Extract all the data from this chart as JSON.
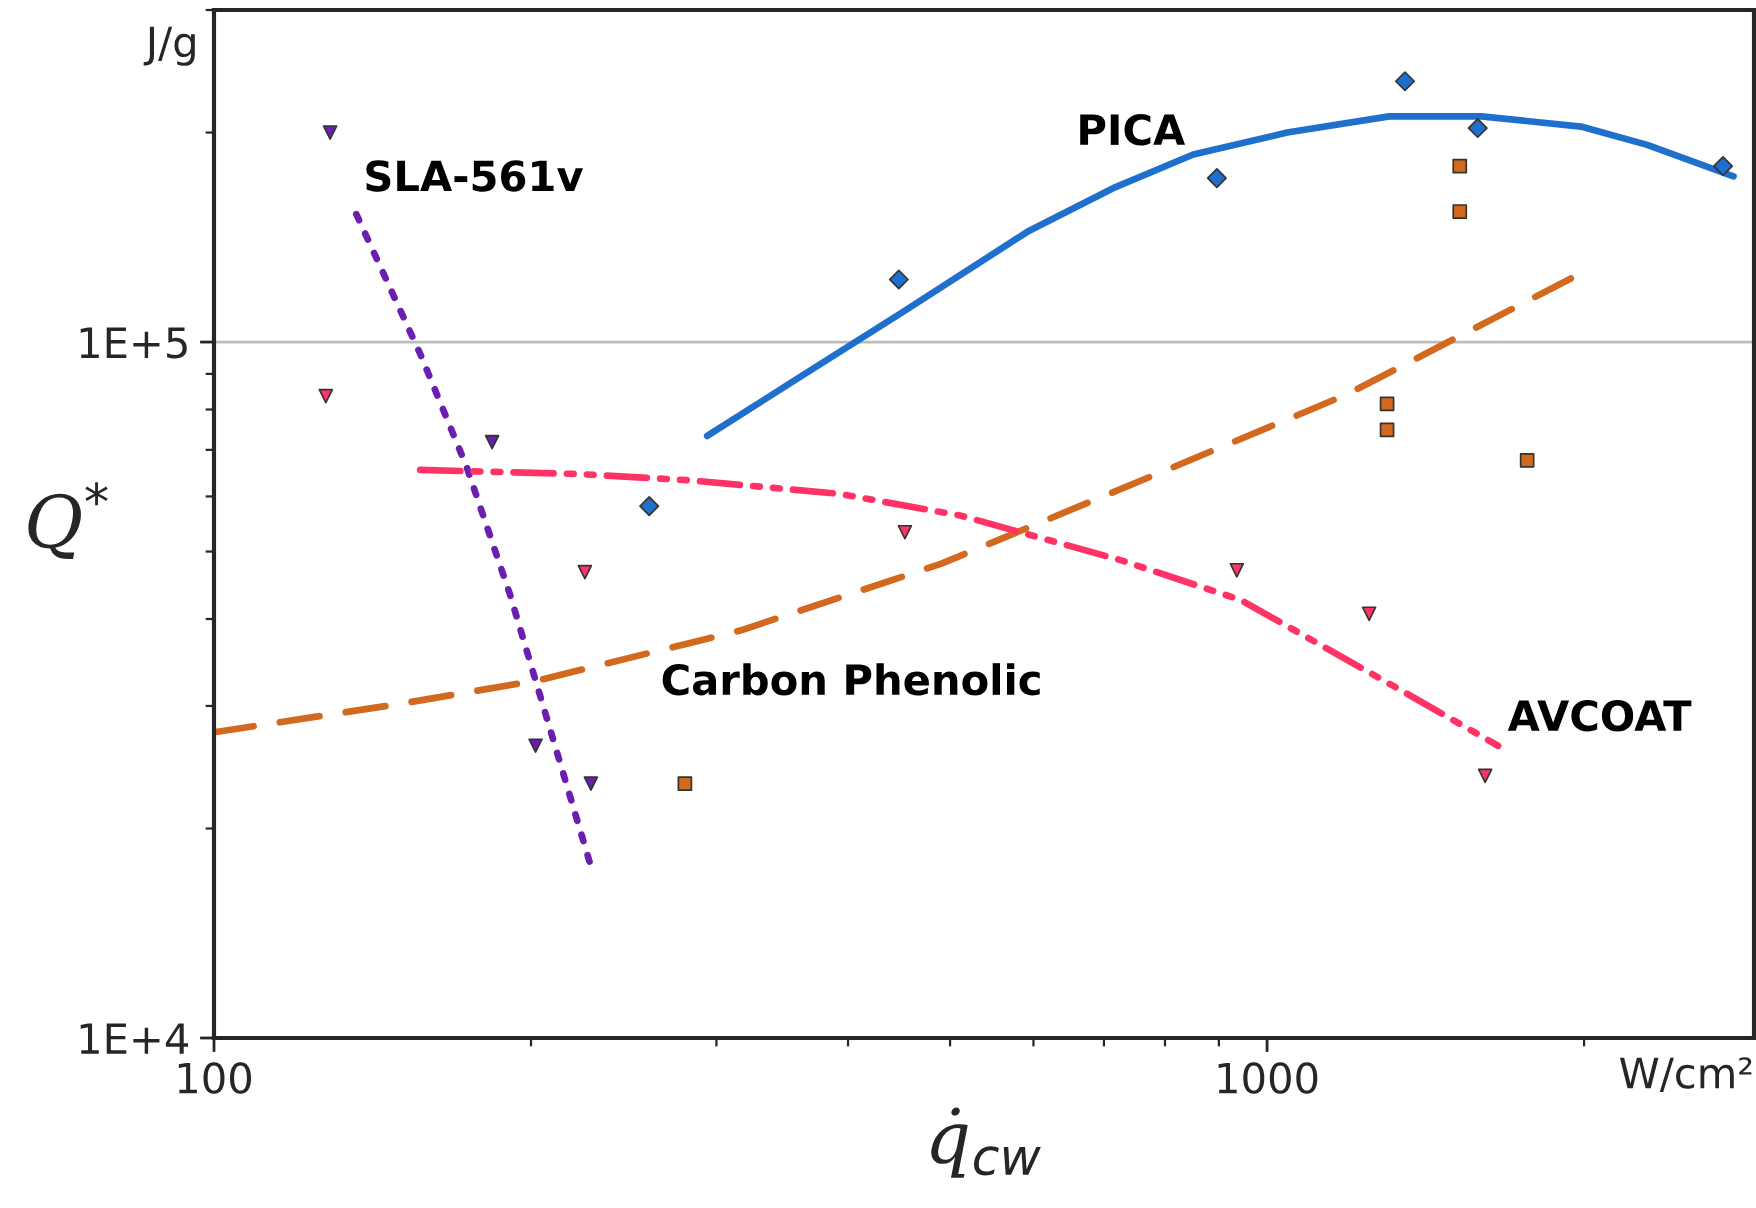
{
  "chart_data": {
    "type": "line",
    "xlabel": "q̇$_{cw}$",
    "ylabel": "Q$^{*}$",
    "log": "xy",
    "grid": "y",
    "legend": false,
    "xlim": [
      100,
      2900
    ],
    "ylim": [
      10000,
      300000
    ],
    "xticks": [
      100,
      1000
    ],
    "yticks": [
      {
        "value": 10000,
        "label": "1E+4"
      },
      {
        "value": 100000,
        "label": "1E+5"
      }
    ],
    "annotations": [
      "W/cm²",
      "J/g"
    ],
    "series": [
      {
        "name": "SLA-561v",
        "color": "#6a1fb0",
        "line_style": "dotted",
        "marker": "none",
        "x": [
          136.5,
          157,
          173.6,
          191,
          227.6
        ],
        "values": [
          152700,
          96100,
          66400,
          43400,
          17800
        ]
      },
      {
        "type": "scatter",
        "color": "#6a1fb0",
        "marker": "triangle",
        "x": [
          128.9,
          183.7,
          202,
          228
        ],
        "values": [
          200000,
          71800,
          26300,
          23200
        ]
      },
      {
        "name": "PICA",
        "color": "#1f6fcc",
        "line_style": "solid",
        "marker": "none",
        "x": [
          294,
          361,
          449,
          592,
          718,
          851,
          1045,
          1306,
          1597,
          1986,
          2296,
          2773
        ],
        "values": [
          73300,
          89300,
          110000,
          144000,
          167000,
          186000,
          200000,
          211000,
          211000,
          204000,
          192000,
          173000
        ]
      },
      {
        "type": "scatter",
        "color": "#1f6fcc",
        "marker": "diamond",
        "x": [
          259,
          447,
          896,
          1352,
          1585,
          2710
        ],
        "values": [
          58100,
          123000,
          172000,
          237000,
          203000,
          179000
        ]
      },
      {
        "name": "Carbon Phenolic",
        "color": "#d2691e",
        "line_style": "dashed",
        "marker": "none",
        "x": [
          100,
          150,
          204,
          316,
          490,
          793,
          1191,
          1995
        ],
        "values": [
          27500,
          30200,
          32700,
          38500,
          48000,
          65000,
          84100,
          126000
        ]
      },
      {
        "type": "scatter",
        "color": "#d2691e",
        "marker": "square",
        "x": [
          280,
          1300,
          1300,
          1524,
          1524,
          1766
        ],
        "values": [
          23200,
          81500,
          74800,
          179000,
          154000,
          67600
        ]
      },
      {
        "name": "AVCOAT",
        "color": "#ff3366",
        "line_style": "dashdot",
        "marker": "none",
        "x": [
          157,
          223,
          283,
          393,
          512,
          726,
          944,
          1340,
          1657
        ],
        "values": [
          65500,
          64600,
          63300,
          60500,
          56300,
          48600,
          42600,
          31600,
          26300
        ]
      },
      {
        "type": "scatter",
        "color": "#ff3366",
        "marker": "triangle",
        "x": [
          127.7,
          225,
          453,
          936,
          1250,
          1611
        ],
        "values": [
          83600,
          46700,
          53300,
          47000,
          40700,
          23800
        ]
      }
    ]
  }
}
